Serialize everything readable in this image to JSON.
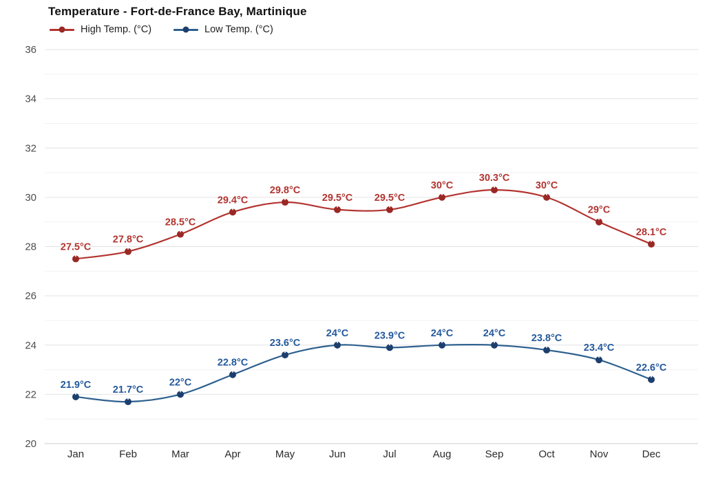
{
  "title": "Temperature - Fort-de-France Bay, Martinique",
  "legend": {
    "high": {
      "label": "High Temp. (°C)"
    },
    "low": {
      "label": "Low Temp. (°C)"
    }
  },
  "colors": {
    "high_line": "#b23430",
    "high_marker": "#9a2824",
    "high_label": "#b23430",
    "low_line": "#2d608f",
    "low_marker": "#1d3f6e",
    "low_label": "#24599c",
    "grid_major": "#e3e3e3",
    "grid_minor": "#f1f1f1",
    "axis_bottom": "#d6d6d6",
    "ytick_text": "#4d4d4d",
    "xtick_text": "#2b2b2b"
  },
  "chart_data": {
    "type": "line",
    "title": "Temperature - Fort-de-France Bay, Martinique",
    "xlabel": "",
    "ylabel": "",
    "categories": [
      "Jan",
      "Feb",
      "Mar",
      "Apr",
      "May",
      "Jun",
      "Jul",
      "Aug",
      "Sep",
      "Oct",
      "Nov",
      "Dec"
    ],
    "series": [
      {
        "name": "High Temp. (°C)",
        "color": "#b23430",
        "values": [
          27.5,
          27.8,
          28.5,
          29.4,
          29.8,
          29.5,
          29.5,
          30,
          30.3,
          30,
          29,
          28.1
        ],
        "labels": [
          "27.5°C",
          "27.8°C",
          "28.5°C",
          "29.4°C",
          "29.8°C",
          "29.5°C",
          "29.5°C",
          "30°C",
          "30.3°C",
          "30°C",
          "29°C",
          "28.1°C"
        ]
      },
      {
        "name": "Low Temp. (°C)",
        "color": "#2d608f",
        "values": [
          21.9,
          21.7,
          22,
          22.8,
          23.6,
          24,
          23.9,
          24,
          24,
          23.8,
          23.4,
          22.6
        ],
        "labels": [
          "21.9°C",
          "21.7°C",
          "22°C",
          "22.8°C",
          "23.6°C",
          "24°C",
          "23.9°C",
          "24°C",
          "24°C",
          "23.8°C",
          "23.4°C",
          "22.6°C"
        ]
      }
    ],
    "ylim": [
      20,
      36
    ],
    "yticks": [
      20,
      22,
      24,
      26,
      28,
      30,
      32,
      34,
      36
    ],
    "grid": "horizontal major gridlines at labeled even values, fainter minor gridlines at odd values",
    "legend_position": "top-left",
    "marker": "filled circle",
    "line_style": "smooth"
  }
}
